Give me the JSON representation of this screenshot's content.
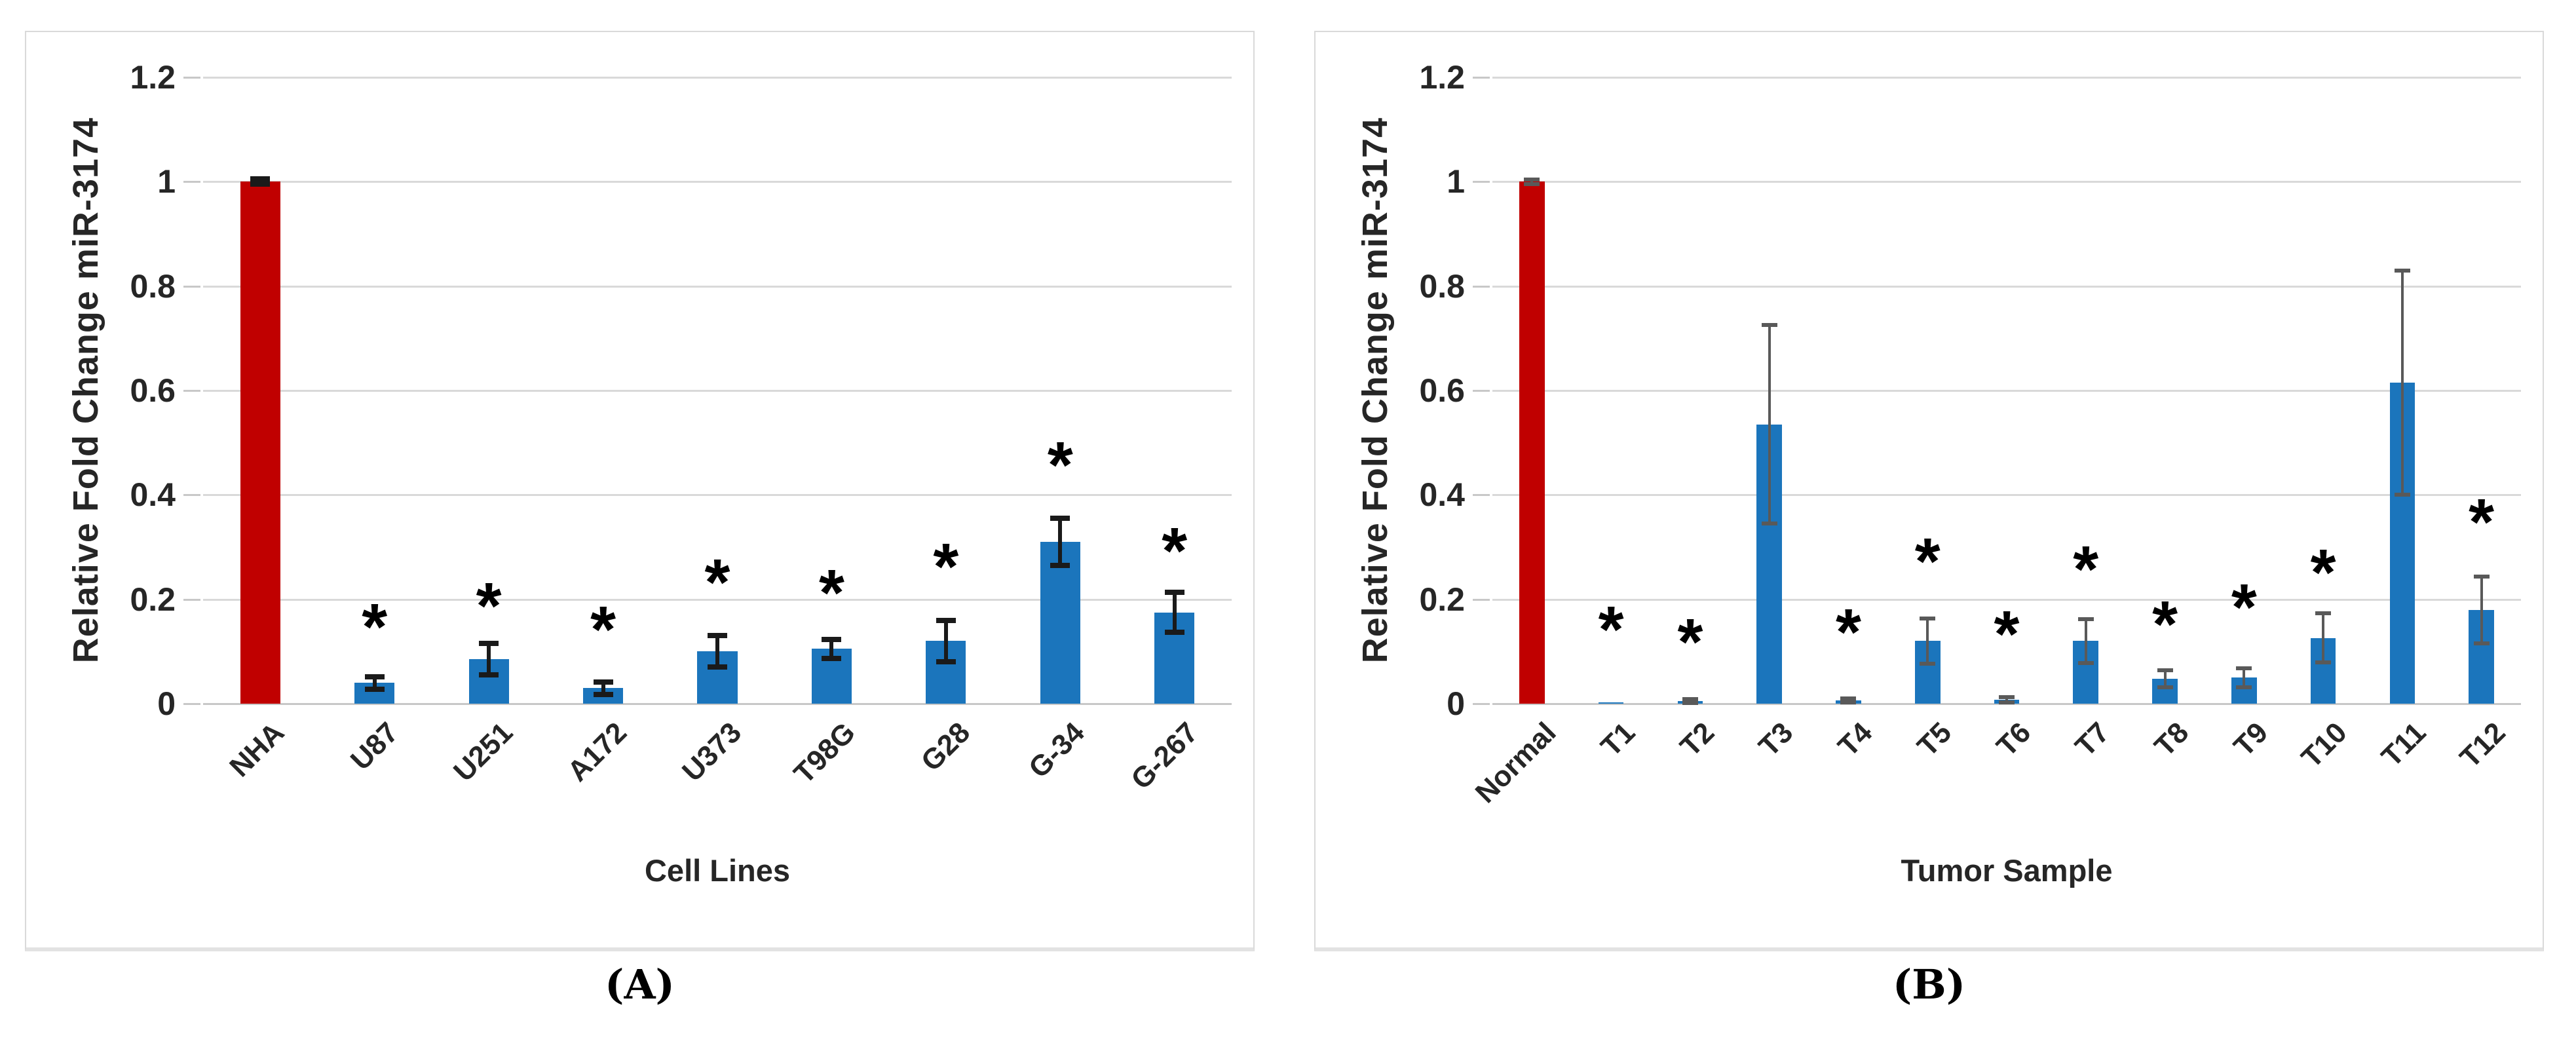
{
  "figure": {
    "background": "#FFFFFF",
    "significance_marker": "*",
    "panels": [
      {
        "caption": "(A)"
      },
      {
        "caption": "(B)"
      }
    ]
  },
  "style": {
    "bar_color_control": "#C00000",
    "bar_color_sample": "#1B75BC",
    "gridline_color": "#D9D9D9",
    "zero_line_color": "#C8C8C8",
    "panel_border_color": "#D9D9D9",
    "text_color": "#262626",
    "error_bar_a": {
      "color": "#1A1A1A",
      "line_width": 6,
      "cap_width": 30,
      "cap_thickness": 8
    },
    "error_bar_b": {
      "color": "#595959",
      "line_width": 4,
      "cap_width": 24,
      "cap_thickness": 6
    }
  },
  "chart_data": [
    {
      "panel": "A",
      "type": "bar",
      "title": "",
      "xlabel": "Cell Lines",
      "ylabel": "Relative Fold Change miR-3174",
      "ylim": [
        0,
        1.2
      ],
      "ytick_values": [
        1.2,
        1,
        0.8,
        0.6,
        0.4,
        0.2,
        0
      ],
      "ytick_labels": [
        "1.2",
        "1",
        "0.8",
        "0.6",
        "0.4",
        "0.2",
        "0"
      ],
      "grid": true,
      "legend": "none",
      "categories": [
        "NHA",
        "U87",
        "U251",
        "A172",
        "U373",
        "T98G",
        "G28",
        "G-34",
        "G-267"
      ],
      "values": [
        1.0,
        0.04,
        0.085,
        0.03,
        0.1,
        0.105,
        0.12,
        0.31,
        0.175
      ],
      "errors": [
        0.005,
        0.012,
        0.03,
        0.012,
        0.03,
        0.018,
        0.04,
        0.045,
        0.038
      ],
      "significant": [
        false,
        true,
        true,
        true,
        true,
        true,
        true,
        true,
        true
      ],
      "asterisk_y": [
        null,
        0.16,
        0.2,
        0.155,
        0.245,
        0.225,
        0.275,
        0.47,
        0.305
      ],
      "bar_width_frac": 0.35
    },
    {
      "panel": "B",
      "type": "bar",
      "title": "",
      "xlabel": "Tumor Sample",
      "ylabel": "Relative Fold Change miR-3174",
      "ylim": [
        0,
        1.2
      ],
      "ytick_values": [
        1.2,
        1,
        0.8,
        0.6,
        0.4,
        0.2,
        0
      ],
      "ytick_labels": [
        "1.2",
        "1",
        "0.8",
        "0.6",
        "0.4",
        "0.2",
        "0"
      ],
      "grid": true,
      "legend": "none",
      "categories": [
        "Normal",
        "T1",
        "T2",
        "T3",
        "T4",
        "T5",
        "T6",
        "T7",
        "T8",
        "T9",
        "T10",
        "T11",
        "T12"
      ],
      "values": [
        1.0,
        0.002,
        0.005,
        0.535,
        0.006,
        0.12,
        0.008,
        0.12,
        0.048,
        0.05,
        0.126,
        0.615,
        0.18
      ],
      "errors": [
        0.004,
        0,
        0.004,
        0.19,
        0.004,
        0.043,
        0.005,
        0.042,
        0.016,
        0.018,
        0.047,
        0.215,
        0.064
      ],
      "significant": [
        false,
        true,
        true,
        false,
        true,
        true,
        true,
        true,
        true,
        true,
        true,
        false,
        true
      ],
      "asterisk_y": [
        null,
        0.155,
        0.13,
        null,
        0.15,
        0.285,
        0.145,
        0.27,
        0.165,
        0.197,
        0.264,
        null,
        0.36
      ],
      "bar_width_frac": 0.32
    }
  ]
}
